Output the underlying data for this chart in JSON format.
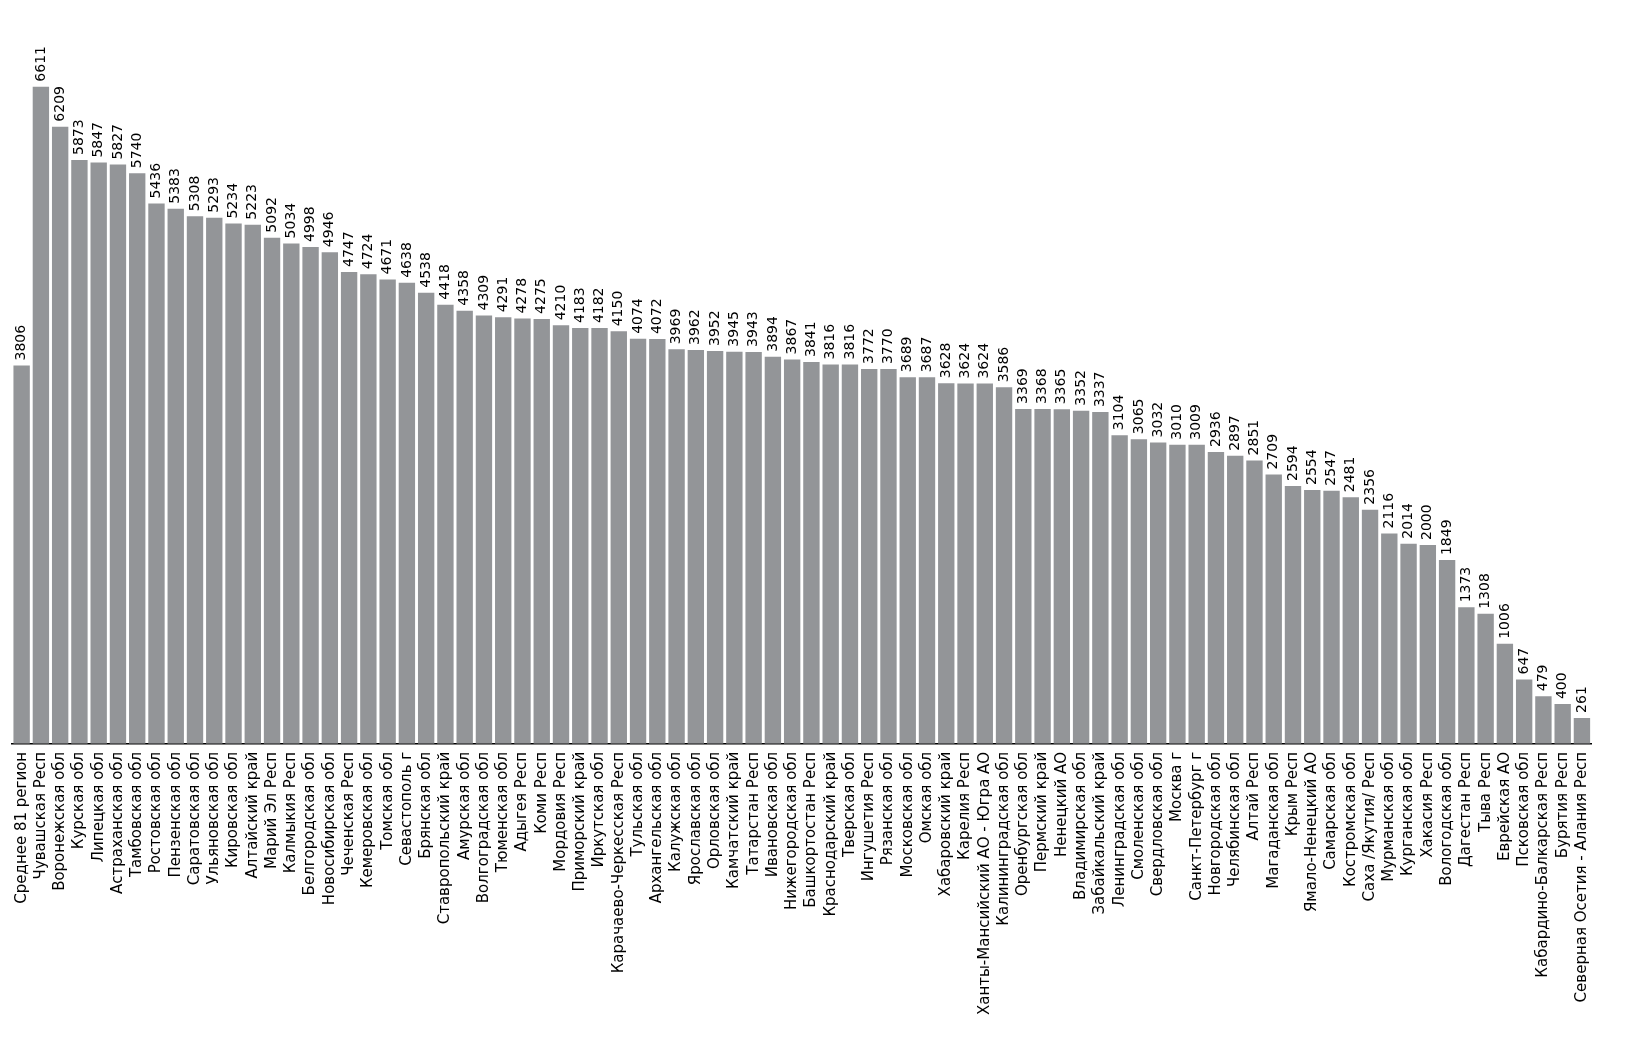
{
  "chart_data": {
    "type": "bar",
    "categories": [
      "Среднее 81 регион",
      "Чувашская Респ",
      "Воронежская обл",
      "Курская обл",
      "Липецкая обл",
      "Астраханская обл",
      "Тамбовская обл",
      "Ростовская обл",
      "Пензенская обл",
      "Саратовская обл",
      "Ульяновская обл",
      "Кировская обл",
      "Алтайский край",
      "Марий Эл Респ",
      "Калмыкия Респ",
      "Белгородская обл",
      "Новосибирская обл",
      "Чеченская Респ",
      "Кемеровская обл",
      "Томская обл",
      "Севастополь г",
      "Брянская обл",
      "Ставропольский край",
      "Амурская обл",
      "Волгоградская обл",
      "Тюменская обл",
      "Адыгея Респ",
      "Коми Респ",
      "Мордовия Респ",
      "Приморский край",
      "Иркутская обл",
      "Карачаево-Черкесская Респ",
      "Тульская обл",
      "Архангельская обл",
      "Калужская обл",
      "Ярославская обл",
      "Орловская обл",
      "Камчатский край",
      "Татарстан Респ",
      "Ивановская обл",
      "Нижегородская обл",
      "Башкортостан Респ",
      "Краснодарский край",
      "Тверская обл",
      "Ингушетия Респ",
      "Рязанская обл",
      "Московская обл",
      "Омская обл",
      "Хабаровский край",
      "Карелия Респ",
      "Ханты-Мансийский АО - Югра АО",
      "Калининградская обл",
      "Оренбургская обл",
      "Пермский край",
      "Ненецкий АО",
      "Владимирская обл",
      "Забайкальский край",
      "Ленинградская обл",
      "Смоленская обл",
      "Свердловская обл",
      "Москва г",
      "Санкт-Петербург г",
      "Новгородская обл",
      "Челябинская обл",
      "Алтай Респ",
      "Магаданская обл",
      "Крым Респ",
      "Ямало-Ненецкий АО",
      "Самарская обл",
      "Костромская обл",
      "Саха /Якутия/ Респ",
      "Мурманская обл",
      "Курганская обл",
      "Хакасия Респ",
      "Вологодская обл",
      "Дагестан Респ",
      "Тыва Респ",
      "Еврейская АО",
      "Псковская обл",
      "Кабардино-Балкарская Респ",
      "Бурятия Респ",
      "Северная Осетия - Алания Респ"
    ],
    "values": [
      3806,
      6611,
      6209,
      5873,
      5847,
      5827,
      5740,
      5436,
      5383,
      5308,
      5293,
      5234,
      5223,
      5092,
      5034,
      4998,
      4946,
      4747,
      4724,
      4671,
      4638,
      4538,
      4418,
      4358,
      4309,
      4291,
      4278,
      4275,
      4210,
      4183,
      4182,
      4150,
      4074,
      4072,
      3969,
      3962,
      3952,
      3945,
      3943,
      3894,
      3867,
      3841,
      3816,
      3816,
      3772,
      3770,
      3689,
      3687,
      3628,
      3624,
      3624,
      3586,
      3369,
      3368,
      3365,
      3352,
      3337,
      3104,
      3065,
      3032,
      3010,
      3009,
      2936,
      2897,
      2851,
      2709,
      2594,
      2554,
      2547,
      2481,
      2356,
      2116,
      2014,
      2000,
      1849,
      1373,
      1308,
      1006,
      647,
      479,
      400,
      261
    ],
    "color": "#939598",
    "data_labels": true,
    "tick_labels": "x",
    "grid": false
  }
}
